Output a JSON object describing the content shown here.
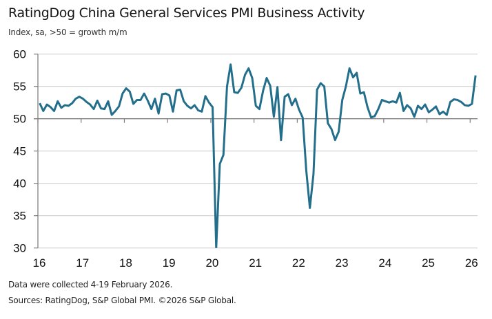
{
  "title": "RatingDog China General Services PMI Business Activity",
  "subtitle": "Index, sa, >50 = growth m/m",
  "footer": {
    "note": "Data were collected 4-19 February 2026.",
    "sources": "Sources: RatingDog, S&P Global PMI. ©2026 S&P Global."
  },
  "colors": {
    "series": "#236e8b",
    "gridline": "#d0d0d0",
    "axis": "#7f7f7f"
  },
  "chart_data": {
    "type": "line",
    "title": "RatingDog China General Services PMI Business Activity",
    "subtitle": "Index, sa, >50 = growth m/m",
    "xlabel": "",
    "ylabel": "",
    "ylim": [
      30,
      60
    ],
    "yticks": [
      30,
      35,
      40,
      45,
      50,
      55,
      60
    ],
    "xlim": [
      "2016-01",
      "2026-02"
    ],
    "x_axis_crosses_at": 50,
    "grid": true,
    "legend": "none",
    "xtick_labels": [
      "16",
      "17",
      "18",
      "19",
      "20",
      "21",
      "22",
      "23",
      "24",
      "25",
      "26"
    ],
    "start": "2016-01",
    "frequency": "monthly",
    "series": [
      {
        "name": "Services PMI Business Activity",
        "values": [
          52.4,
          51.2,
          52.2,
          51.8,
          51.2,
          52.7,
          51.7,
          52.1,
          52.0,
          52.4,
          53.1,
          53.4,
          53.1,
          52.6,
          52.2,
          51.5,
          52.8,
          51.6,
          51.5,
          52.7,
          50.6,
          51.2,
          51.9,
          53.9,
          54.7,
          54.2,
          52.3,
          52.9,
          52.9,
          53.9,
          52.8,
          51.5,
          53.1,
          50.8,
          53.8,
          53.9,
          53.6,
          51.1,
          54.4,
          54.5,
          52.7,
          52.0,
          51.6,
          52.1,
          51.3,
          51.1,
          53.5,
          52.5,
          51.8,
          26.5,
          43.0,
          44.4,
          55.0,
          58.4,
          54.1,
          54.0,
          54.8,
          56.8,
          57.8,
          56.3,
          52.0,
          51.5,
          54.3,
          56.3,
          55.1,
          50.3,
          54.9,
          46.7,
          53.4,
          53.8,
          52.1,
          53.1,
          51.4,
          50.2,
          42.0,
          36.2,
          41.4,
          54.5,
          55.5,
          55.0,
          49.3,
          48.4,
          46.7,
          48.0,
          52.9,
          55.0,
          57.8,
          56.4,
          57.1,
          53.9,
          54.1,
          51.8,
          50.2,
          50.4,
          51.5,
          52.9,
          52.7,
          52.5,
          52.7,
          52.5,
          54.0,
          51.2,
          52.1,
          51.6,
          50.3,
          52.0,
          51.5,
          52.2,
          51.0,
          51.4,
          51.9,
          50.7,
          51.1,
          50.6,
          52.6,
          53.0,
          52.9,
          52.6,
          52.1,
          52.0,
          52.3,
          56.7
        ]
      }
    ]
  }
}
